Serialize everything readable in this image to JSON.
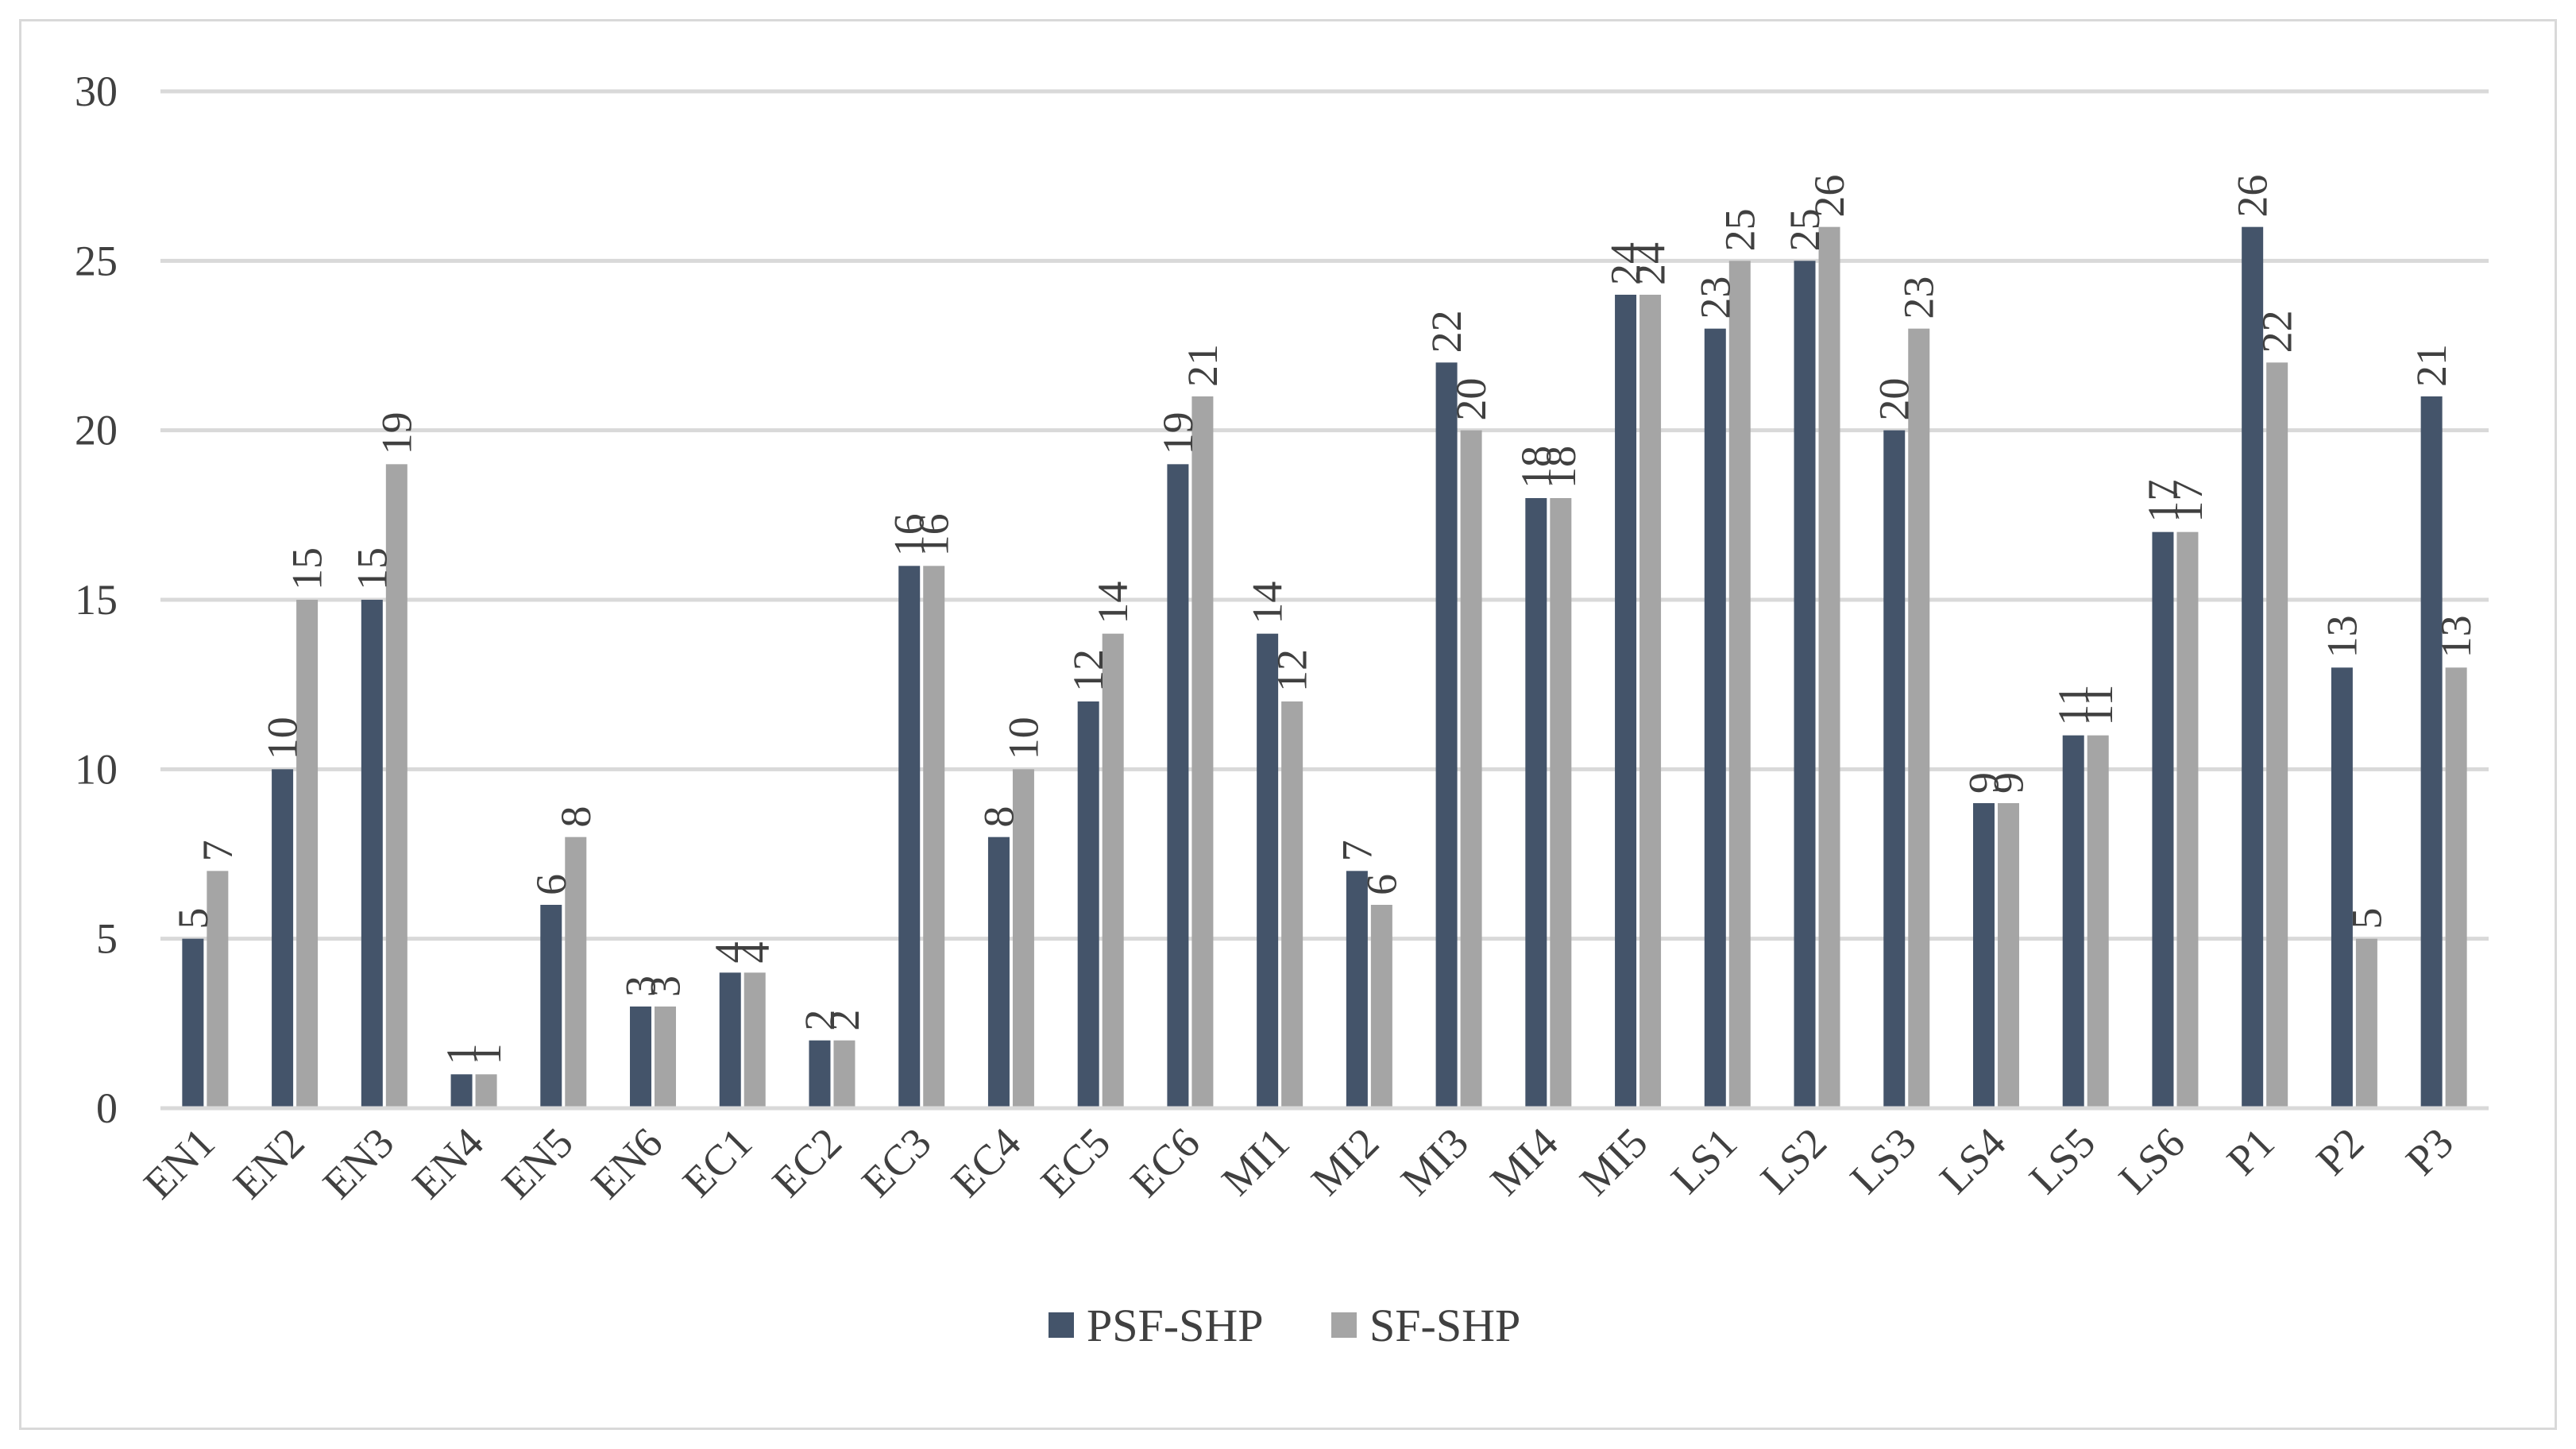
{
  "chart_data": {
    "type": "bar",
    "title": "",
    "xlabel": "",
    "ylabel": "",
    "ylim": [
      0,
      30
    ],
    "yticks": [
      0,
      5,
      10,
      15,
      20,
      25,
      30
    ],
    "grid": true,
    "legend_position": "bottom-center",
    "categories": [
      "EN1",
      "EN2",
      "EN3",
      "EN4",
      "EN5",
      "EN6",
      "EC1",
      "EC2",
      "EC3",
      "EC4",
      "EC5",
      "EC6",
      "MI1",
      "MI2",
      "MI3",
      "MI4",
      "MI5",
      "LS1",
      "LS2",
      "LS3",
      "LS4",
      "LS5",
      "LS6",
      "P1",
      "P2",
      "P3"
    ],
    "series": [
      {
        "name": "PSF-SHP",
        "color": "#44546a",
        "values": [
          5,
          10,
          15,
          1,
          6,
          3,
          4,
          2,
          16,
          8,
          12,
          19,
          14,
          7,
          22,
          18,
          24,
          23,
          25,
          20,
          9,
          11,
          17,
          26,
          13,
          21
        ]
      },
      {
        "name": "SF-SHP",
        "color": "#a5a5a5",
        "values": [
          7,
          15,
          19,
          1,
          8,
          3,
          4,
          2,
          16,
          10,
          14,
          21,
          12,
          6,
          20,
          18,
          24,
          25,
          26,
          23,
          9,
          11,
          17,
          22,
          5,
          13
        ]
      }
    ]
  }
}
